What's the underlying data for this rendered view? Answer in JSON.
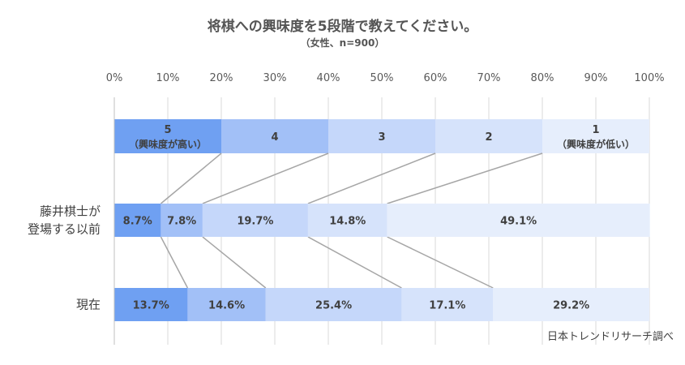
{
  "title": "将棋への興味度を5段階で教えてください。",
  "subtitle": "（女性、n=900）",
  "source": "日本トレンドリサーチ調べ",
  "colors": [
    "#6fa0f2",
    "#a2c0f7",
    "#c5d7fa",
    "#d6e3fb",
    "#e6eefc"
  ],
  "label_color": "#404040",
  "connector_color": "#a6a6a6",
  "chart_data": {
    "type": "bar",
    "orientation": "horizontal",
    "stacked": true,
    "xlim": [
      0,
      100
    ],
    "x_ticks": [
      "0%",
      "10%",
      "20%",
      "30%",
      "40%",
      "50%",
      "60%",
      "70%",
      "80%",
      "90%",
      "100%"
    ],
    "legend_bar": [
      {
        "line1": "5",
        "line2": "（興味度が高い）",
        "value": 20
      },
      {
        "line1": "4",
        "line2": "",
        "value": 20
      },
      {
        "line1": "3",
        "line2": "",
        "value": 20
      },
      {
        "line1": "2",
        "line2": "",
        "value": 20
      },
      {
        "line1": "1",
        "line2": "（興味度が低い）",
        "value": 20
      }
    ],
    "categories": [
      {
        "label_lines": [
          "藤井棋士が",
          "登場する以前"
        ],
        "values": [
          8.7,
          7.8,
          19.7,
          14.8,
          49.1
        ],
        "labels": [
          "8.7%",
          "7.8%",
          "19.7%",
          "14.8%",
          "49.1%"
        ]
      },
      {
        "label_lines": [
          "現在"
        ],
        "values": [
          13.7,
          14.6,
          25.4,
          17.1,
          29.2
        ],
        "labels": [
          "13.7%",
          "14.6%",
          "25.4%",
          "17.1%",
          "29.2%"
        ]
      }
    ]
  }
}
